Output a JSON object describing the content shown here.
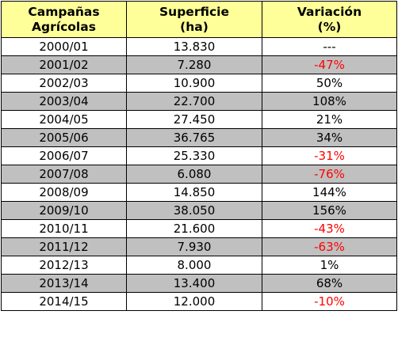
{
  "table": {
    "headers": [
      {
        "line1": "Campañas",
        "line2": "Agrícolas"
      },
      {
        "line1": "Superficie",
        "line2": "(ha)"
      },
      {
        "line1": "Variación",
        "line2": "(%)"
      }
    ],
    "rows": [
      {
        "campaign": "2000/01",
        "surface": "13.830",
        "variation": "---",
        "negative": false
      },
      {
        "campaign": "2001/02",
        "surface": "7.280",
        "variation": "-47%",
        "negative": true
      },
      {
        "campaign": "2002/03",
        "surface": "10.900",
        "variation": "50%",
        "negative": false
      },
      {
        "campaign": "2003/04",
        "surface": "22.700",
        "variation": "108%",
        "negative": false
      },
      {
        "campaign": "2004/05",
        "surface": "27.450",
        "variation": "21%",
        "negative": false
      },
      {
        "campaign": "2005/06",
        "surface": "36.765",
        "variation": "34%",
        "negative": false
      },
      {
        "campaign": "2006/07",
        "surface": "25.330",
        "variation": "-31%",
        "negative": true
      },
      {
        "campaign": "2007/08",
        "surface": "6.080",
        "variation": "-76%",
        "negative": true
      },
      {
        "campaign": "2008/09",
        "surface": "14.850",
        "variation": "144%",
        "negative": false
      },
      {
        "campaign": "2009/10",
        "surface": "38.050",
        "variation": "156%",
        "negative": false
      },
      {
        "campaign": "2010/11",
        "surface": "21.600",
        "variation": "-43%",
        "negative": true
      },
      {
        "campaign": "2011/12",
        "surface": "7.930",
        "variation": "-63%",
        "negative": true
      },
      {
        "campaign": "2012/13",
        "surface": "8.000",
        "variation": "1%",
        "negative": false
      },
      {
        "campaign": "2013/14",
        "surface": "13.400",
        "variation": "68%",
        "negative": false
      },
      {
        "campaign": "2014/15",
        "surface": "12.000",
        "variation": "-10%",
        "negative": true
      }
    ]
  },
  "colors": {
    "header_background": "#ffff99",
    "shaded_row": "#c0c0c0",
    "negative_text": "#ff0000"
  }
}
